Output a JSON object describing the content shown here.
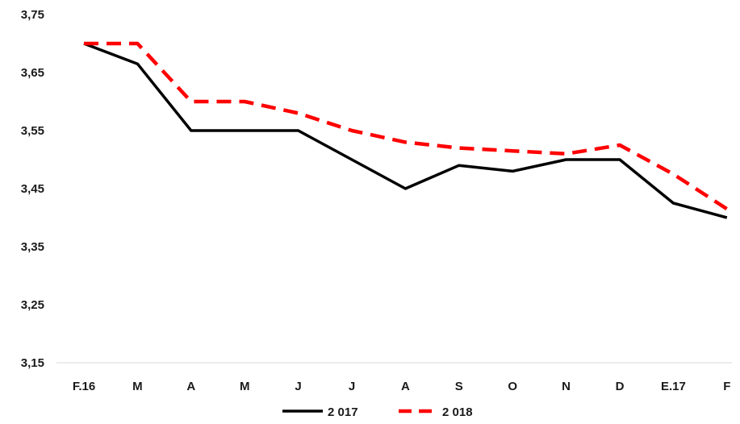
{
  "chart_data": {
    "type": "line",
    "title": "",
    "xlabel": "",
    "ylabel": "",
    "categories": [
      "F.16",
      "M",
      "A",
      "M",
      "J",
      "J",
      "A",
      "S",
      "O",
      "N",
      "D",
      "E.17",
      "F"
    ],
    "ylim": [
      3.15,
      3.75
    ],
    "yticks": [
      "3,75",
      "3,65",
      "3,55",
      "3,45",
      "3,35",
      "3,25",
      "3,15"
    ],
    "grid": false,
    "legend_position": "bottom",
    "series": [
      {
        "name": "2 017",
        "color": "#000000",
        "dash": "solid",
        "values": [
          3.7,
          3.665,
          3.55,
          3.55,
          3.55,
          3.5,
          3.45,
          3.49,
          3.48,
          3.5,
          3.5,
          3.425,
          3.4
        ]
      },
      {
        "name": "2 018",
        "color": "#ff0000",
        "dash": "dashed",
        "values": [
          3.7,
          3.7,
          3.6,
          3.6,
          3.58,
          3.55,
          3.53,
          3.52,
          3.515,
          3.51,
          3.525,
          3.475,
          3.415
        ]
      }
    ]
  }
}
